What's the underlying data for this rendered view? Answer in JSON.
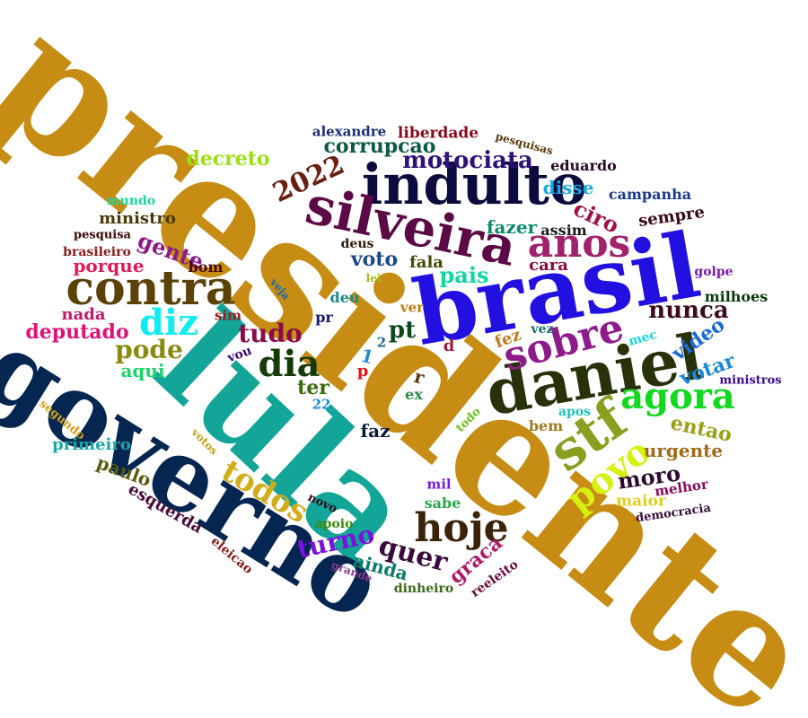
{
  "words": [
    {
      "id": "presidente",
      "text": "presidente",
      "color": "#c68c14"
    },
    {
      "id": "lula",
      "text": "lula",
      "color": "#13a597"
    },
    {
      "id": "governo",
      "text": "governo",
      "color": "#062652"
    },
    {
      "id": "brasil",
      "text": "brasil",
      "color": "#2210e0"
    },
    {
      "id": "daniel",
      "text": "daniel",
      "color": "#27320b"
    },
    {
      "id": "indulto",
      "text": "indulto",
      "color": "#0b0c3d"
    },
    {
      "id": "silveira",
      "text": "silveira",
      "color": "#5b0a46"
    },
    {
      "id": "contra",
      "text": "contra",
      "color": "#5a4208"
    },
    {
      "id": "stf",
      "text": "stf",
      "color": "#8b9e20"
    },
    {
      "id": "hoje",
      "text": "hoje",
      "color": "#3a2308"
    },
    {
      "id": "anos",
      "text": "anos",
      "color": "#a2216c"
    },
    {
      "id": "sobre",
      "text": "sobre",
      "color": "#8f1b8b"
    },
    {
      "id": "agora",
      "text": "agora",
      "color": "#12d81e"
    },
    {
      "id": "povo",
      "text": "povo",
      "color": "#d6f010"
    },
    {
      "id": "diz",
      "text": "diz",
      "color": "#10ecf0"
    },
    {
      "id": "dia",
      "text": "dia",
      "color": "#163b08"
    },
    {
      "id": "todos",
      "text": "todos",
      "color": "#d3ac1a"
    },
    {
      "id": "motociata",
      "text": "motociata",
      "color": "#2f0f78"
    },
    {
      "id": "2022",
      "text": "2022",
      "color": "#6a1f10"
    },
    {
      "id": "corrupcao",
      "text": "corrupcao",
      "color": "#0a5a46"
    },
    {
      "id": "nunca",
      "text": "nunca",
      "color": "#3c0b22"
    },
    {
      "id": "tudo",
      "text": "tudo",
      "color": "#8a0a4a"
    },
    {
      "id": "pode",
      "text": "pode",
      "color": "#8a8a10"
    },
    {
      "id": "turno",
      "text": "turno",
      "color": "#7b10e0"
    },
    {
      "id": "quer",
      "text": "quer",
      "color": "#3a0a3a"
    },
    {
      "id": "moro",
      "text": "moro",
      "color": "#2f0a2f"
    },
    {
      "id": "gente",
      "text": "gente",
      "color": "#8a1a8a"
    },
    {
      "id": "deputado",
      "text": "deputado",
      "color": "#e0127a"
    },
    {
      "id": "video",
      "text": "video",
      "color": "#1a6ad6"
    },
    {
      "id": "votar",
      "text": "votar",
      "color": "#1a8ad6"
    },
    {
      "id": "ciro",
      "text": "ciro",
      "color": "#a0124a"
    },
    {
      "id": "decreto",
      "text": "decreto",
      "color": "#9ae010"
    },
    {
      "id": "pais",
      "text": "pais",
      "color": "#10d6a0"
    },
    {
      "id": "pt",
      "text": "pt",
      "color": "#0a4a1a"
    },
    {
      "id": "disse",
      "text": "disse",
      "color": "#1aa6e0"
    },
    {
      "id": "entao",
      "text": "entao",
      "color": "#9aa010"
    },
    {
      "id": "paulo",
      "text": "paulo",
      "color": "#5a5a0a"
    },
    {
      "id": "esquerda",
      "text": "esquerda",
      "color": "#4a0a3a"
    },
    {
      "id": "graca",
      "text": "graca",
      "color": "#b01a6a"
    },
    {
      "id": "ainda",
      "text": "ainda",
      "color": "#0a7a6a"
    },
    {
      "id": "ter",
      "text": "ter",
      "color": "#3a6a0a"
    },
    {
      "id": "porque",
      "text": "porque",
      "color": "#e01a5a"
    },
    {
      "id": "urgente",
      "text": "urgente",
      "color": "#a06a1a"
    },
    {
      "id": "voto",
      "text": "voto",
      "color": "#1a4a8a"
    },
    {
      "id": "fazer",
      "text": "fazer",
      "color": "#0a8a6a"
    },
    {
      "id": "sempre",
      "text": "sempre",
      "color": "#3a0a1a"
    },
    {
      "id": "campanha",
      "text": "campanha",
      "color": "#1a3a8a"
    },
    {
      "id": "eduardo",
      "text": "eduardo",
      "color": "#2a0a2a"
    },
    {
      "id": "liberdade",
      "text": "liberdade",
      "color": "#8a0a1a"
    },
    {
      "id": "alexandre",
      "text": "alexandre",
      "color": "#1a2a7a"
    },
    {
      "id": "ministro",
      "text": "ministro",
      "color": "#4a3a0a"
    },
    {
      "id": "primeiro",
      "text": "primeiro",
      "color": "#1aa6a6"
    },
    {
      "id": "aqui",
      "text": "aqui",
      "color": "#1ad66a"
    },
    {
      "id": "faz",
      "text": "faz",
      "color": "#0a1a3a"
    },
    {
      "id": "cara",
      "text": "cara",
      "color": "#8a0a3a"
    },
    {
      "id": "fez",
      "text": "fez",
      "color": "#c07a1a"
    },
    {
      "id": "nada",
      "text": "nada",
      "color": "#c01a6a"
    },
    {
      "id": "maior",
      "text": "maior",
      "color": "#e0d01a"
    },
    {
      "id": "milhoes",
      "text": "milhoes",
      "color": "#0a3a0a"
    },
    {
      "id": "assim",
      "text": "assim",
      "color": "#1a1a1a"
    },
    {
      "id": "fala",
      "text": "fala",
      "color": "#4a4a0a"
    },
    {
      "id": "melhor",
      "text": "melhor",
      "color": "#8a0a5a"
    },
    {
      "id": "sabe",
      "text": "sabe",
      "color": "#2aa64a"
    },
    {
      "id": "bem",
      "text": "bem",
      "color": "#a07a1a"
    },
    {
      "id": "deu",
      "text": "deu",
      "color": "#1a8a8a"
    },
    {
      "id": "mundo",
      "text": "mundo",
      "color": "#1ad6a0"
    },
    {
      "id": "brasileiro",
      "text": "brasileiro",
      "color": "#8a1a1a"
    },
    {
      "id": "pesquisa",
      "text": "pesquisa",
      "color": "#3a0a0a"
    },
    {
      "id": "pesquisas",
      "text": "pesquisas",
      "color": "#5a3a0a"
    },
    {
      "id": "bom",
      "text": "bom",
      "color": "#4a0a0a"
    },
    {
      "id": "sim",
      "text": "sim",
      "color": "#a01a1a"
    },
    {
      "id": "vou",
      "text": "vou",
      "color": "#3a0a7a"
    },
    {
      "id": "ver",
      "text": "ver",
      "color": "#c07a0a"
    },
    {
      "id": "vez",
      "text": "vez",
      "color": "#1a6a6a"
    },
    {
      "id": "deus",
      "text": "deus",
      "color": "#2a1a0a"
    },
    {
      "id": "lei",
      "text": "lei",
      "color": "#a0c01a"
    },
    {
      "id": "veja",
      "text": "veja",
      "color": "#1a6aa0"
    },
    {
      "id": "pr",
      "text": "pr",
      "color": "#1a1a6a"
    },
    {
      "id": "1",
      "text": "1",
      "color": "#2a8ad6"
    },
    {
      "id": "2",
      "text": "2",
      "color": "#1a6a8a"
    },
    {
      "id": "d",
      "text": "d",
      "color": "#a01a3a"
    },
    {
      "id": "p",
      "text": "p",
      "color": "#e0121a"
    },
    {
      "id": "r",
      "text": "r",
      "color": "#5a3a0a"
    },
    {
      "id": "ex",
      "text": "ex",
      "color": "#2a8a4a"
    },
    {
      "id": "22",
      "text": "22",
      "color": "#1a8ae0"
    },
    {
      "id": "todo",
      "text": "todo",
      "color": "#6ac01a"
    },
    {
      "id": "apos",
      "text": "apos",
      "color": "#1ac0c0"
    },
    {
      "id": "mec",
      "text": "mec",
      "color": "#1ad6e0"
    },
    {
      "id": "golpe",
      "text": "golpe",
      "color": "#7a1ab0"
    },
    {
      "id": "ministros",
      "text": "ministros",
      "color": "#3a0a8a"
    },
    {
      "id": "democracia",
      "text": "democracia",
      "color": "#3a0a3a"
    },
    {
      "id": "mil",
      "text": "mil",
      "color": "#7a1ae0"
    },
    {
      "id": "novo",
      "text": "novo",
      "color": "#2a0a1a"
    },
    {
      "id": "apoio",
      "text": "apoio",
      "color": "#3a8a0a"
    },
    {
      "id": "grande",
      "text": "grande",
      "color": "#8a3a8a"
    },
    {
      "id": "dinheiro",
      "text": "dinheiro",
      "color": "#3a6a1a"
    },
    {
      "id": "reeleito",
      "text": "reeleito",
      "color": "#6a0a3a"
    },
    {
      "id": "eleicao",
      "text": "eleicao",
      "color": "#8a1a1a"
    },
    {
      "id": "votos",
      "text": "votos",
      "color": "#c0a01a"
    },
    {
      "id": "segundo",
      "text": "segundo",
      "color": "#d6a01a"
    }
  ]
}
